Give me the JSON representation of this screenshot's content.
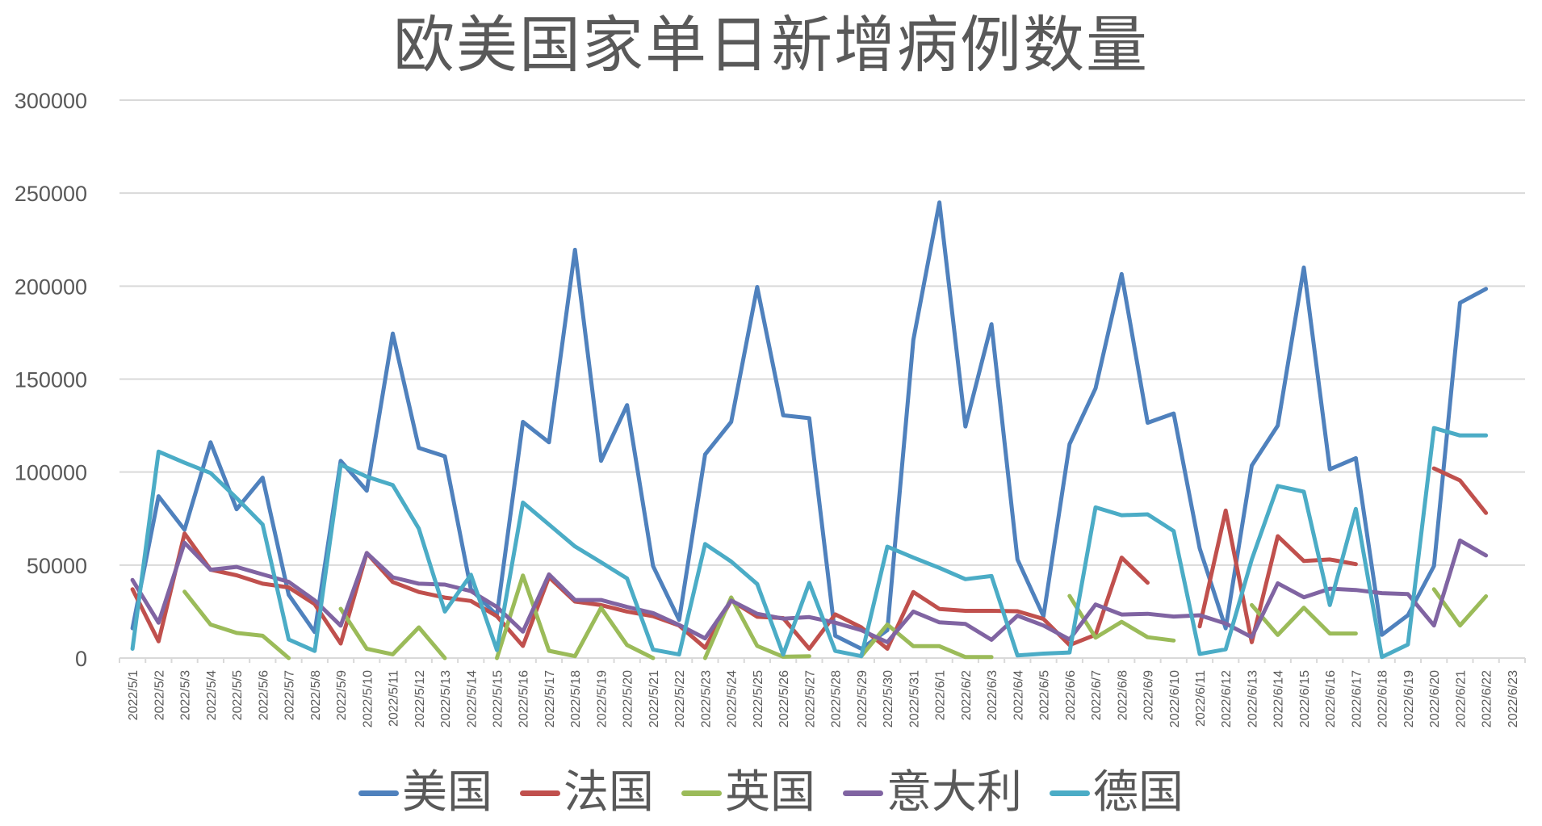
{
  "chart_data": {
    "type": "line",
    "title": "欧美国家单日新增病例数量",
    "xlabel": "",
    "ylabel": "",
    "ylim": [
      0,
      300000
    ],
    "yticks": [
      0,
      50000,
      100000,
      150000,
      200000,
      250000,
      300000
    ],
    "ytick_labels": [
      "0",
      "50000",
      "100000",
      "150000",
      "200000",
      "250000",
      "300000"
    ],
    "grid": true,
    "legend_position": "bottom",
    "categories": [
      "2022/5/1",
      "2022/5/2",
      "2022/5/3",
      "2022/5/4",
      "2022/5/5",
      "2022/5/6",
      "2022/5/7",
      "2022/5/8",
      "2022/5/9",
      "2022/5/10",
      "2022/5/11",
      "2022/5/12",
      "2022/5/13",
      "2022/5/14",
      "2022/5/15",
      "2022/5/16",
      "2022/5/17",
      "2022/5/18",
      "2022/5/19",
      "2022/5/20",
      "2022/5/21",
      "2022/5/22",
      "2022/5/23",
      "2022/5/24",
      "2022/5/25",
      "2022/5/26",
      "2022/5/27",
      "2022/5/28",
      "2022/5/29",
      "2022/5/30",
      "2022/5/31",
      "2022/6/1",
      "2022/6/2",
      "2022/6/3",
      "2022/6/4",
      "2022/6/5",
      "2022/6/6",
      "2022/6/7",
      "2022/6/8",
      "2022/6/9",
      "2022/6/10",
      "2022/6/11",
      "2022/6/12",
      "2022/6/13",
      "2022/6/14",
      "2022/6/15",
      "2022/6/16",
      "2022/6/17",
      "2022/6/18",
      "2022/6/19",
      "2022/6/20",
      "2022/6/21",
      "2022/6/22",
      "2022/6/23"
    ],
    "series": [
      {
        "name": "美国",
        "color": "#4F81BD",
        "values": [
          16000,
          87000,
          69000,
          116000,
          80000,
          97000,
          34000,
          14000,
          106000,
          90000,
          174500,
          113000,
          108500,
          37000,
          23000,
          127000,
          116000,
          219500,
          106000,
          136000,
          49500,
          20500,
          109500,
          127000,
          199500,
          130500,
          129000,
          12000,
          5000,
          15000,
          171000,
          245000,
          124500,
          179500,
          53000,
          22500,
          115000,
          145000,
          206500,
          126500,
          131500,
          59000,
          16000,
          103500,
          125000,
          210000,
          101500,
          107500,
          12500,
          23000,
          49500,
          191000,
          198500,
          null
        ]
      },
      {
        "name": "法国",
        "color": "#C0504D",
        "values": [
          37000,
          9000,
          67000,
          47500,
          44500,
          40000,
          38000,
          29000,
          7800,
          56500,
          40900,
          35500,
          32500,
          30700,
          22500,
          6500,
          43500,
          30400,
          28500,
          25000,
          22500,
          17500,
          5500,
          31000,
          22200,
          21500,
          5000,
          23500,
          16500,
          5000,
          35500,
          26400,
          25400,
          25400,
          25200,
          21000,
          7000,
          12500,
          54000,
          40500,
          null,
          17000,
          79300,
          8500,
          65500,
          52200,
          53000,
          50500,
          null,
          null,
          102000,
          95500,
          78000,
          null
        ]
      },
      {
        "name": "英国",
        "color": "#9BBB59",
        "values": [
          null,
          null,
          35700,
          18000,
          13500,
          12000,
          0,
          null,
          26500,
          5000,
          2000,
          16500,
          0,
          null,
          0,
          44400,
          3900,
          1000,
          27000,
          7000,
          0,
          null,
          0,
          32600,
          6500,
          700,
          1000,
          null,
          1000,
          18000,
          6400,
          6400,
          500,
          500,
          null,
          null,
          33400,
          11000,
          19500,
          11200,
          9400,
          null,
          null,
          28500,
          12400,
          27100,
          13200,
          13200,
          null,
          null,
          37000,
          17500,
          33200,
          null
        ]
      },
      {
        "name": "意大利",
        "color": "#8064A2",
        "values": [
          42000,
          19000,
          62000,
          47500,
          49000,
          45000,
          41000,
          31000,
          17400,
          56500,
          43400,
          40000,
          39500,
          36000,
          27500,
          14200,
          45000,
          31200,
          31200,
          27500,
          24200,
          17800,
          10600,
          30900,
          23800,
          21200,
          22000,
          19000,
          15000,
          8500,
          25000,
          19200,
          18300,
          9800,
          22800,
          17500,
          10000,
          28800,
          23400,
          23800,
          22300,
          23000,
          18600,
          11200,
          40200,
          32700,
          37300,
          36600,
          34900,
          34400,
          17500,
          63200,
          55200,
          null
        ]
      },
      {
        "name": "德国",
        "color": "#4BACC6",
        "values": [
          5000,
          111000,
          105000,
          99500,
          86000,
          71800,
          10000,
          3800,
          104000,
          97500,
          93000,
          69600,
          25000,
          44800,
          4300,
          83600,
          71800,
          60000,
          51500,
          42800,
          4500,
          1900,
          61300,
          51900,
          39800,
          1900,
          40400,
          3800,
          1000,
          59900,
          54000,
          48500,
          42400,
          44100,
          1400,
          2400,
          3000,
          81000,
          76800,
          77300,
          68300,
          2200,
          4700,
          53000,
          92500,
          89500,
          28500,
          80200,
          500,
          7300,
          123700,
          119700,
          119700,
          null
        ]
      }
    ]
  },
  "title": "欧美国家单日新增病例数量",
  "legend": [
    {
      "label": "美国",
      "color": "#4F81BD"
    },
    {
      "label": "法国",
      "color": "#C0504D"
    },
    {
      "label": "英国",
      "color": "#9BBB59"
    },
    {
      "label": "意大利",
      "color": "#8064A2"
    },
    {
      "label": "德国",
      "color": "#4BACC6"
    }
  ],
  "style": {
    "gridline_color": "#D9D9D9",
    "text_color": "#595959",
    "axis_color": "#D9D9D9"
  }
}
